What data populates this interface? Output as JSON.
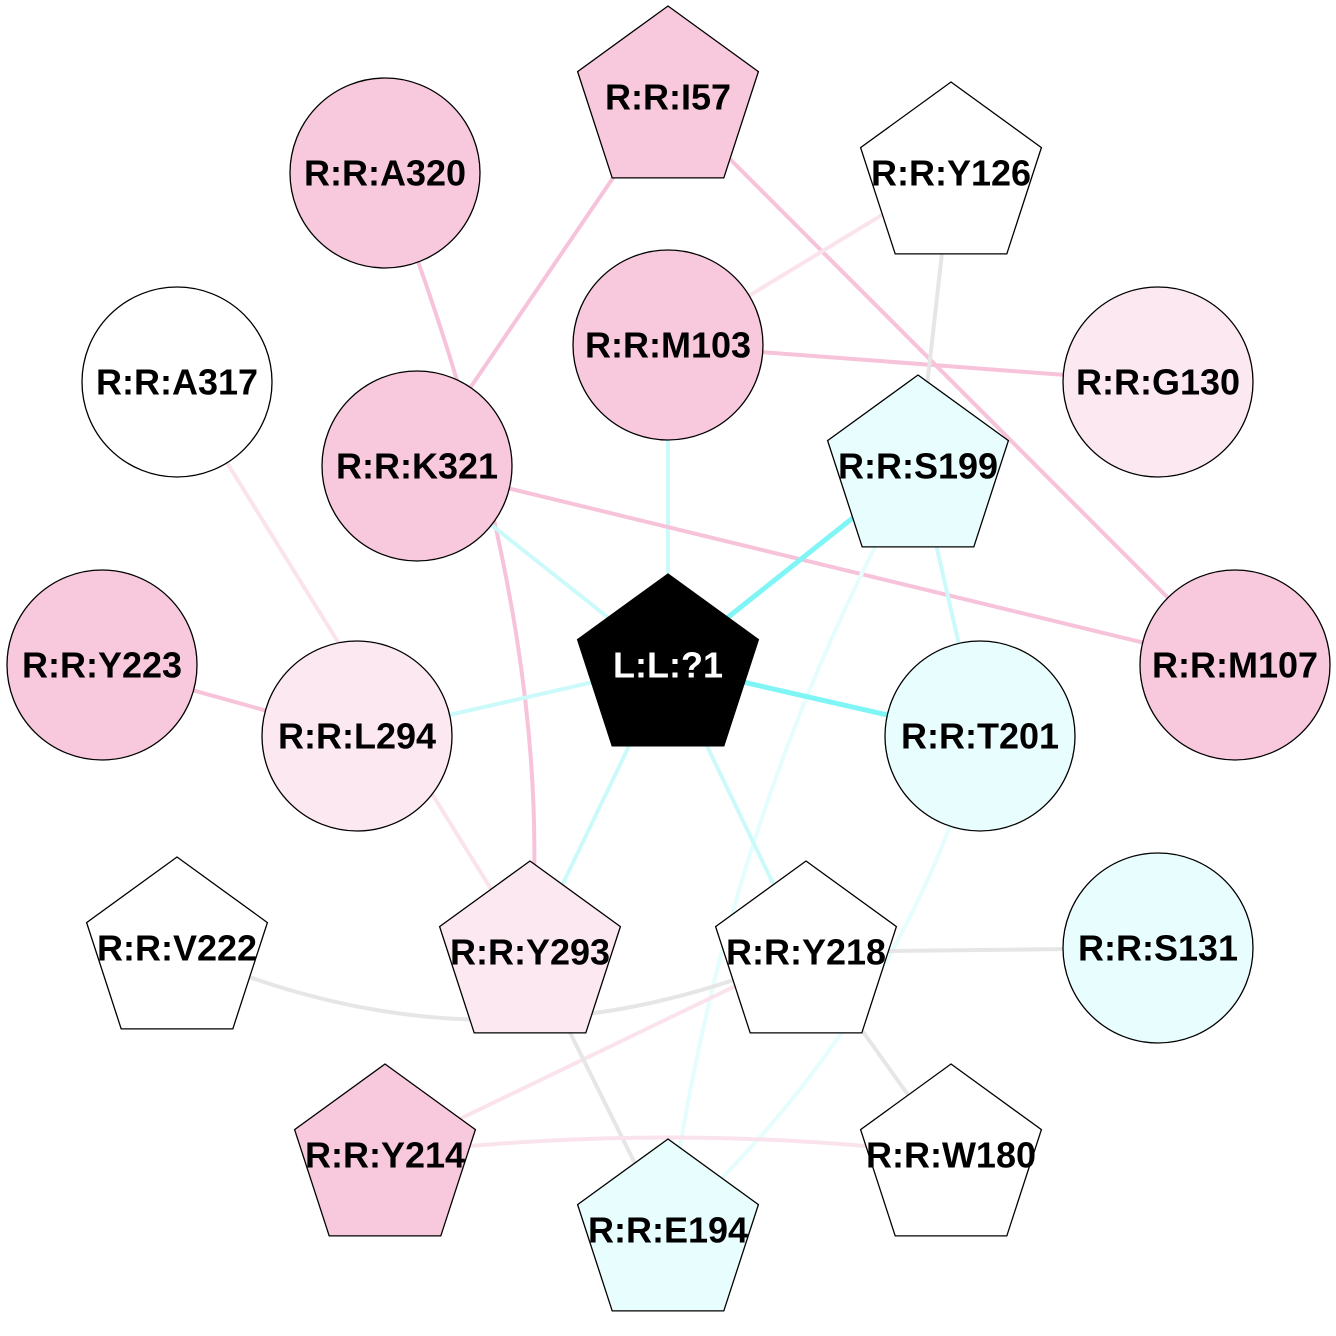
{
  "colors": {
    "hydrophobic_strong": "#f8c8dc",
    "hydrophobic_light": "#fbe8f1",
    "polar": "#e8fdfd",
    "neutral": "#ffffff",
    "ligand": "#000000",
    "edge_pink": "#f7c3da",
    "edge_pink_faint": "#fbe3ee",
    "edge_cyan_strong": "#7ff5f5",
    "edge_cyan": "#ccfafa",
    "edge_cyan_faint": "#e5fdfd",
    "edge_gray": "#e6e6e6"
  },
  "nodes": [
    {
      "id": "L:L:?1",
      "label": "L:L:?1",
      "shape": "pentagon",
      "fill": "ligand"
    },
    {
      "id": "R:R:I57",
      "label": "R:R:I57",
      "shape": "pentagon",
      "fill": "hydrophobic_strong"
    },
    {
      "id": "R:R:A320",
      "label": "R:R:A320",
      "shape": "circle",
      "fill": "hydrophobic_strong"
    },
    {
      "id": "R:R:Y126",
      "label": "R:R:Y126",
      "shape": "pentagon",
      "fill": "neutral"
    },
    {
      "id": "R:R:M103",
      "label": "R:R:M103",
      "shape": "circle",
      "fill": "hydrophobic_strong"
    },
    {
      "id": "R:R:G130",
      "label": "R:R:G130",
      "shape": "circle",
      "fill": "hydrophobic_light"
    },
    {
      "id": "R:R:A317",
      "label": "R:R:A317",
      "shape": "circle",
      "fill": "neutral"
    },
    {
      "id": "R:R:K321",
      "label": "R:R:K321",
      "shape": "circle",
      "fill": "hydrophobic_strong"
    },
    {
      "id": "R:R:S199",
      "label": "R:R:S199",
      "shape": "pentagon",
      "fill": "polar"
    },
    {
      "id": "R:R:Y223",
      "label": "R:R:Y223",
      "shape": "circle",
      "fill": "hydrophobic_strong"
    },
    {
      "id": "R:R:L294",
      "label": "R:R:L294",
      "shape": "circle",
      "fill": "hydrophobic_light"
    },
    {
      "id": "R:R:T201",
      "label": "R:R:T201",
      "shape": "circle",
      "fill": "polar"
    },
    {
      "id": "R:R:M107",
      "label": "R:R:M107",
      "shape": "circle",
      "fill": "hydrophobic_strong"
    },
    {
      "id": "R:R:V222",
      "label": "R:R:V222",
      "shape": "pentagon",
      "fill": "neutral"
    },
    {
      "id": "R:R:Y293",
      "label": "R:R:Y293",
      "shape": "pentagon",
      "fill": "hydrophobic_light"
    },
    {
      "id": "R:R:Y218",
      "label": "R:R:Y218",
      "shape": "pentagon",
      "fill": "neutral"
    },
    {
      "id": "R:R:S131",
      "label": "R:R:S131",
      "shape": "circle",
      "fill": "polar"
    },
    {
      "id": "R:R:Y214",
      "label": "R:R:Y214",
      "shape": "pentagon",
      "fill": "hydrophobic_strong"
    },
    {
      "id": "R:R:W180",
      "label": "R:R:W180",
      "shape": "pentagon",
      "fill": "neutral"
    },
    {
      "id": "R:R:E194",
      "label": "R:R:E194",
      "shape": "pentagon",
      "fill": "polar"
    }
  ],
  "edges": [
    {
      "source": "R:R:I57",
      "target": "R:R:K321",
      "color": "edge_pink"
    },
    {
      "source": "R:R:I57",
      "target": "R:R:M107",
      "color": "edge_pink"
    },
    {
      "source": "R:R:A320",
      "target": "R:R:Y293",
      "color": "edge_pink",
      "curved": true
    },
    {
      "source": "R:R:M103",
      "target": "R:R:Y126",
      "color": "edge_pink_faint"
    },
    {
      "source": "R:R:M103",
      "target": "R:R:G130",
      "color": "edge_pink"
    },
    {
      "source": "R:R:M103",
      "target": "L:L:?1",
      "color": "edge_cyan"
    },
    {
      "source": "R:R:K321",
      "target": "R:R:M107",
      "color": "edge_pink"
    },
    {
      "source": "R:R:K321",
      "target": "L:L:?1",
      "color": "edge_cyan"
    },
    {
      "source": "R:R:Y126",
      "target": "R:R:S199",
      "color": "edge_gray"
    },
    {
      "source": "R:R:A317",
      "target": "R:R:Y293",
      "color": "edge_pink_faint"
    },
    {
      "source": "R:R:S199",
      "target": "L:L:?1",
      "color": "edge_cyan_strong"
    },
    {
      "source": "R:R:S199",
      "target": "R:R:T201",
      "color": "edge_cyan"
    },
    {
      "source": "R:R:S199",
      "target": "R:R:E194",
      "color": "edge_cyan_faint",
      "curved": true
    },
    {
      "source": "R:R:Y223",
      "target": "R:R:L294",
      "color": "edge_pink"
    },
    {
      "source": "R:R:L294",
      "target": "L:L:?1",
      "color": "edge_cyan"
    },
    {
      "source": "R:R:T201",
      "target": "L:L:?1",
      "color": "edge_cyan_strong"
    },
    {
      "source": "R:R:T201",
      "target": "R:R:E194",
      "color": "edge_cyan_faint",
      "curved": true
    },
    {
      "source": "L:L:?1",
      "target": "R:R:Y293",
      "color": "edge_cyan"
    },
    {
      "source": "L:L:?1",
      "target": "R:R:Y218",
      "color": "edge_cyan"
    },
    {
      "source": "R:R:V222",
      "target": "R:R:Y218",
      "color": "edge_gray",
      "curved": true
    },
    {
      "source": "R:R:Y218",
      "target": "R:R:S131",
      "color": "edge_gray"
    },
    {
      "source": "R:R:Y218",
      "target": "R:R:W180",
      "color": "edge_gray"
    },
    {
      "source": "R:R:Y218",
      "target": "R:R:Y214",
      "color": "edge_pink_faint"
    },
    {
      "source": "R:R:Y293",
      "target": "R:R:E194",
      "color": "edge_gray"
    },
    {
      "source": "R:R:Y214",
      "target": "R:R:W180",
      "color": "edge_pink_faint",
      "curved": true
    }
  ]
}
